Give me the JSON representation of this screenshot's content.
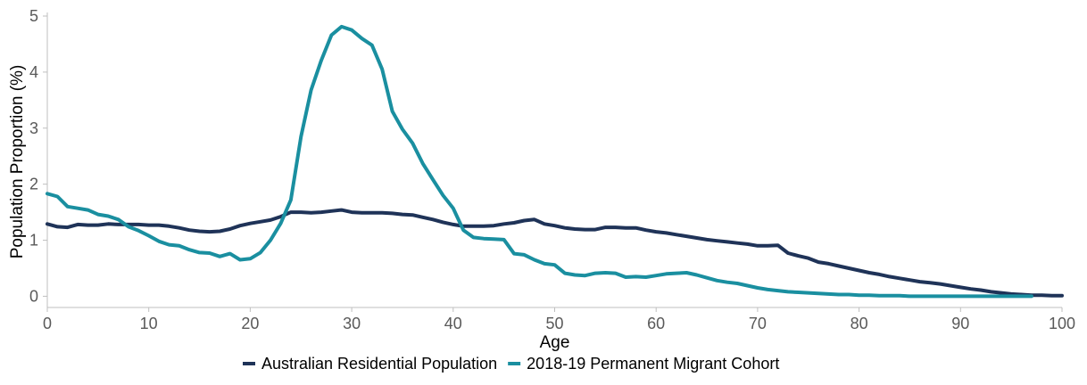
{
  "chart_data": {
    "type": "line",
    "xlabel": "Age",
    "ylabel": "Population Proportion (%)",
    "xlim": [
      0,
      100
    ],
    "ylim": [
      -0.2,
      5
    ],
    "x_ticks": [
      "0",
      "10",
      "20",
      "30",
      "40",
      "50",
      "60",
      "70",
      "80",
      "90",
      "100"
    ],
    "y_ticks": [
      "0",
      "1",
      "2",
      "3",
      "4",
      "5"
    ],
    "grid": false,
    "legend_position": "bottom",
    "series": [
      {
        "name": "Australian Residential Population",
        "color": "#1f3358",
        "x": [
          0,
          1,
          2,
          3,
          4,
          5,
          6,
          7,
          8,
          9,
          10,
          11,
          12,
          13,
          14,
          15,
          16,
          17,
          18,
          19,
          20,
          21,
          22,
          23,
          24,
          25,
          26,
          27,
          28,
          29,
          30,
          31,
          32,
          33,
          34,
          35,
          36,
          37,
          38,
          39,
          40,
          41,
          42,
          43,
          44,
          45,
          46,
          47,
          48,
          49,
          50,
          51,
          52,
          53,
          54,
          55,
          56,
          57,
          58,
          59,
          60,
          61,
          62,
          63,
          64,
          65,
          66,
          67,
          68,
          69,
          70,
          71,
          72,
          73,
          74,
          75,
          76,
          77,
          78,
          79,
          80,
          81,
          82,
          83,
          84,
          85,
          86,
          87,
          88,
          89,
          90,
          91,
          92,
          93,
          94,
          95,
          96,
          97,
          98,
          99,
          100
        ],
        "values": [
          1.29,
          1.24,
          1.23,
          1.28,
          1.27,
          1.27,
          1.29,
          1.28,
          1.28,
          1.28,
          1.27,
          1.27,
          1.25,
          1.22,
          1.18,
          1.16,
          1.15,
          1.16,
          1.2,
          1.26,
          1.3,
          1.33,
          1.36,
          1.42,
          1.5,
          1.5,
          1.49,
          1.5,
          1.52,
          1.54,
          1.5,
          1.49,
          1.49,
          1.49,
          1.48,
          1.46,
          1.45,
          1.41,
          1.37,
          1.32,
          1.28,
          1.25,
          1.25,
          1.25,
          1.26,
          1.29,
          1.31,
          1.35,
          1.37,
          1.29,
          1.26,
          1.22,
          1.2,
          1.19,
          1.19,
          1.23,
          1.23,
          1.22,
          1.22,
          1.18,
          1.15,
          1.13,
          1.1,
          1.07,
          1.04,
          1.01,
          0.99,
          0.97,
          0.95,
          0.93,
          0.9,
          0.9,
          0.91,
          0.77,
          0.72,
          0.68,
          0.61,
          0.58,
          0.54,
          0.5,
          0.46,
          0.42,
          0.39,
          0.35,
          0.32,
          0.29,
          0.26,
          0.24,
          0.22,
          0.19,
          0.16,
          0.13,
          0.11,
          0.08,
          0.06,
          0.04,
          0.03,
          0.02,
          0.02,
          0.01,
          0.01
        ]
      },
      {
        "name": "2018-19 Permanent Migrant Cohort",
        "color": "#1a8fa0",
        "x": [
          0,
          1,
          2,
          3,
          4,
          5,
          6,
          7,
          8,
          9,
          10,
          11,
          12,
          13,
          14,
          15,
          16,
          17,
          18,
          19,
          20,
          21,
          22,
          23,
          24,
          25,
          26,
          27,
          28,
          29,
          30,
          31,
          32,
          33,
          34,
          35,
          36,
          37,
          38,
          39,
          40,
          41,
          42,
          43,
          44,
          45,
          46,
          47,
          48,
          49,
          50,
          51,
          52,
          53,
          54,
          55,
          56,
          57,
          58,
          59,
          60,
          61,
          62,
          63,
          64,
          65,
          66,
          67,
          68,
          69,
          70,
          71,
          72,
          73,
          74,
          75,
          76,
          77,
          78,
          79,
          80,
          81,
          82,
          83,
          84,
          85,
          86,
          87,
          88,
          89,
          90,
          91,
          92,
          93,
          94,
          95,
          96,
          97
        ],
        "values": [
          1.83,
          1.78,
          1.6,
          1.57,
          1.54,
          1.46,
          1.43,
          1.37,
          1.24,
          1.17,
          1.08,
          0.98,
          0.92,
          0.9,
          0.83,
          0.78,
          0.77,
          0.71,
          0.76,
          0.65,
          0.67,
          0.78,
          1.0,
          1.3,
          1.72,
          2.85,
          3.68,
          4.21,
          4.66,
          4.81,
          4.75,
          4.6,
          4.48,
          4.05,
          3.3,
          2.98,
          2.73,
          2.37,
          2.08,
          1.8,
          1.57,
          1.18,
          1.05,
          1.03,
          1.02,
          1.01,
          0.76,
          0.74,
          0.65,
          0.58,
          0.56,
          0.41,
          0.38,
          0.37,
          0.41,
          0.42,
          0.41,
          0.34,
          0.35,
          0.34,
          0.37,
          0.4,
          0.41,
          0.42,
          0.38,
          0.33,
          0.28,
          0.25,
          0.23,
          0.19,
          0.15,
          0.12,
          0.1,
          0.08,
          0.07,
          0.06,
          0.05,
          0.04,
          0.03,
          0.03,
          0.02,
          0.02,
          0.01,
          0.01,
          0.01,
          0.0,
          0.0,
          0.0,
          0.0,
          0.0,
          0.0,
          0.0,
          0.0,
          0.0,
          0.0,
          0.0,
          0.0,
          0.0
        ]
      }
    ]
  }
}
